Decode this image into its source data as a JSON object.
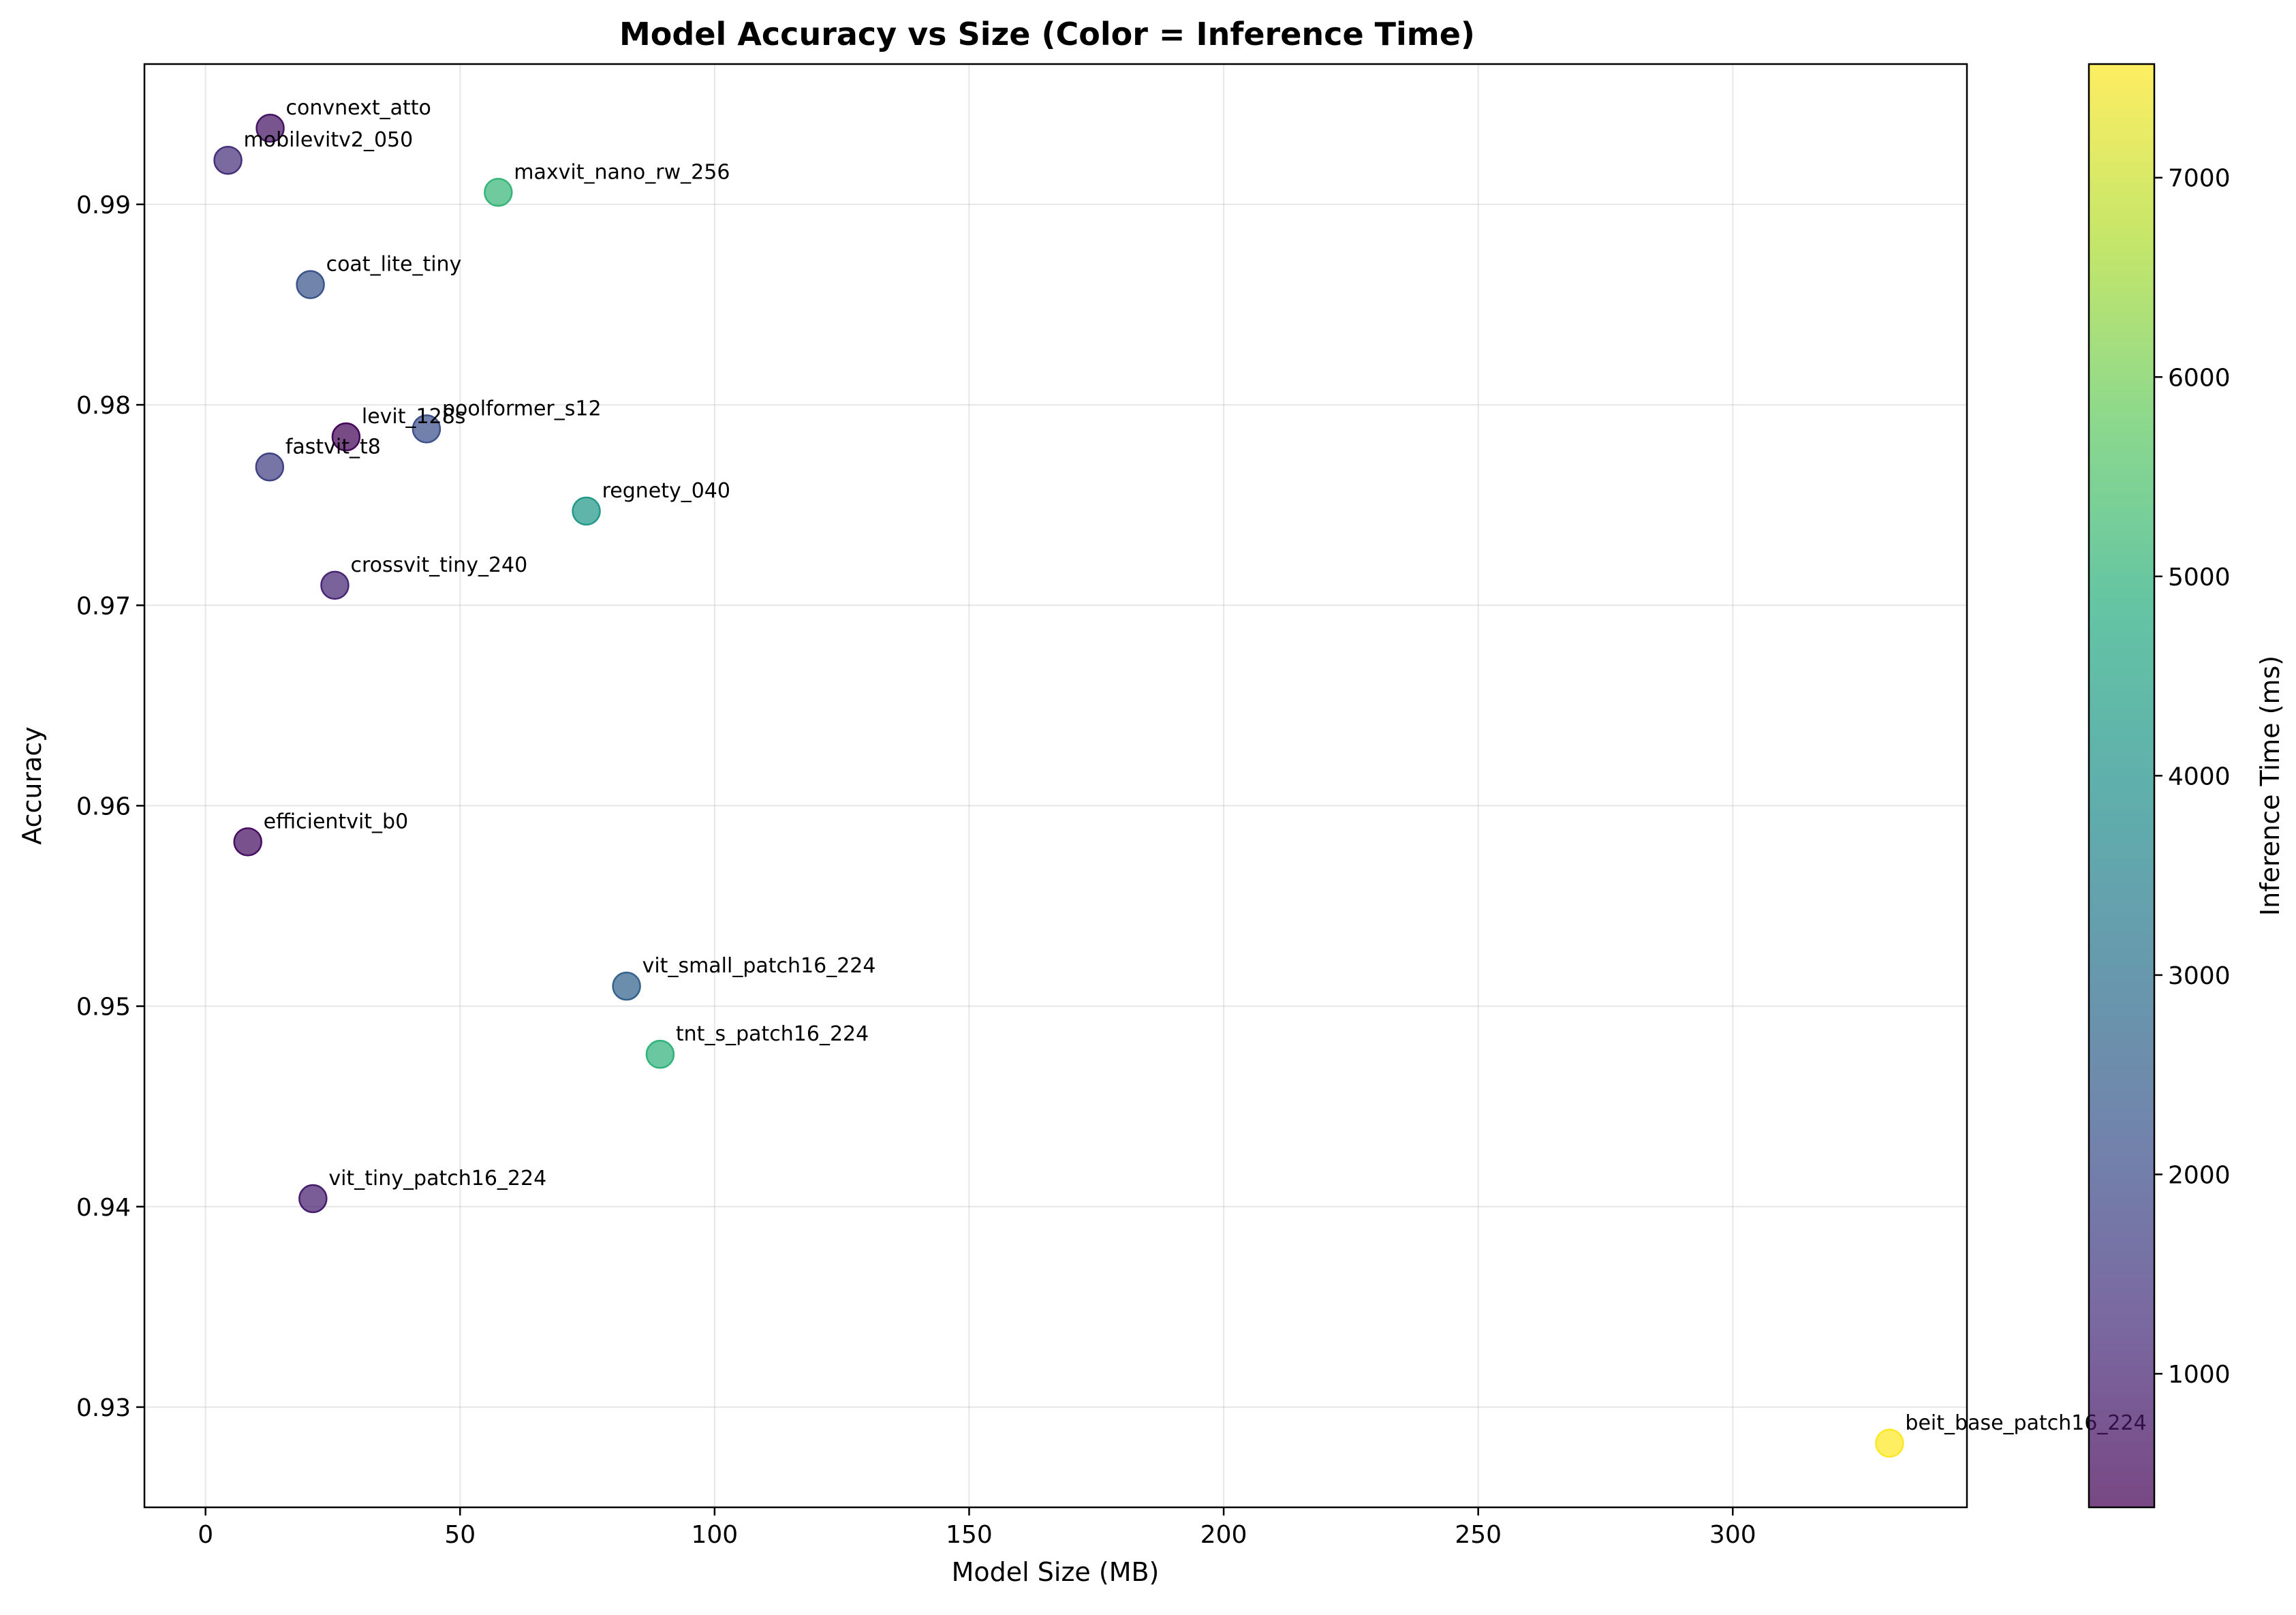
{
  "chart_data": {
    "type": "scatter",
    "title": "Model Accuracy vs Size (Color = Inference Time)",
    "xlabel": "Model Size (MB)",
    "ylabel": "Accuracy",
    "xlim": [
      -12,
      346
    ],
    "ylim": [
      0.925,
      0.997
    ],
    "xticks": [
      0,
      50,
      100,
      150,
      200,
      250,
      300
    ],
    "yticks": [
      0.93,
      0.94,
      0.95,
      0.96,
      0.97,
      0.98,
      0.99
    ],
    "grid": true,
    "colormap": "viridis",
    "colorbar": {
      "label": "Inference Time (ms)",
      "range": [
        330,
        7570
      ],
      "ticks": [
        1000,
        2000,
        3000,
        4000,
        5000,
        6000,
        7000
      ]
    },
    "points": [
      {
        "label": "convnext_atto",
        "x": 12.7,
        "y": 0.9938,
        "time": 700
      },
      {
        "label": "mobilevitv2_050",
        "x": 4.4,
        "y": 0.9922,
        "time": 1300
      },
      {
        "label": "maxvit_nano_rw_256",
        "x": 57.5,
        "y": 0.9906,
        "time": 5100
      },
      {
        "label": "coat_lite_tiny",
        "x": 20.6,
        "y": 0.986,
        "time": 2200
      },
      {
        "label": "levit_128s",
        "x": 27.6,
        "y": 0.9784,
        "time": 400
      },
      {
        "label": "poolformer_s12",
        "x": 43.4,
        "y": 0.9788,
        "time": 2100
      },
      {
        "label": "fastvit_t8",
        "x": 12.6,
        "y": 0.9769,
        "time": 1700
      },
      {
        "label": "regnety_040",
        "x": 74.8,
        "y": 0.9747,
        "time": 4200
      },
      {
        "label": "crossvit_tiny_240",
        "x": 25.4,
        "y": 0.971,
        "time": 1100
      },
      {
        "label": "efficientvit_b0",
        "x": 8.3,
        "y": 0.9582,
        "time": 600
      },
      {
        "label": "vit_small_patch16_224",
        "x": 82.7,
        "y": 0.951,
        "time": 2600
      },
      {
        "label": "tnt_s_patch16_224",
        "x": 89.3,
        "y": 0.9476,
        "time": 5000
      },
      {
        "label": "vit_tiny_patch16_224",
        "x": 21.1,
        "y": 0.9404,
        "time": 900
      },
      {
        "label": "beit_base_patch16_224",
        "x": 330.8,
        "y": 0.9282,
        "time": 7570
      }
    ]
  }
}
